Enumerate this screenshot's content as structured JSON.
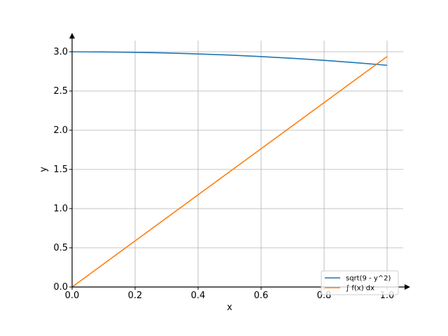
{
  "chart_data": {
    "type": "line",
    "xlabel": "x",
    "ylabel": "y",
    "xlim": [
      0,
      1
    ],
    "ylim": [
      0,
      3
    ],
    "xticks": [
      0.0,
      0.2,
      0.4,
      0.6,
      0.8,
      1.0
    ],
    "xtick_labels": [
      "0.0",
      "0.2",
      "0.4",
      "0.6",
      "0.8",
      "1.0"
    ],
    "yticks": [
      0.0,
      0.5,
      1.0,
      1.5,
      2.0,
      2.5,
      3.0
    ],
    "ytick_labels": [
      "0.0",
      "0.5",
      "1.0",
      "1.5",
      "2.0",
      "2.5",
      "3.0"
    ],
    "grid": true,
    "legend_position": "bottom-right",
    "series": [
      {
        "name": "sqrt(9 - y^2)",
        "color": "#1f77b4",
        "x": [
          0.0,
          0.1,
          0.2,
          0.3,
          0.4,
          0.5,
          0.6,
          0.7,
          0.8,
          0.9,
          1.0
        ],
        "y": [
          3.0,
          2.998,
          2.993,
          2.985,
          2.973,
          2.958,
          2.939,
          2.917,
          2.891,
          2.861,
          2.828
        ]
      },
      {
        "name": "∫ f(x) dx",
        "color": "#ff7f0e",
        "x": [
          0.0,
          1.0
        ],
        "y": [
          0.0,
          2.94
        ]
      }
    ]
  }
}
